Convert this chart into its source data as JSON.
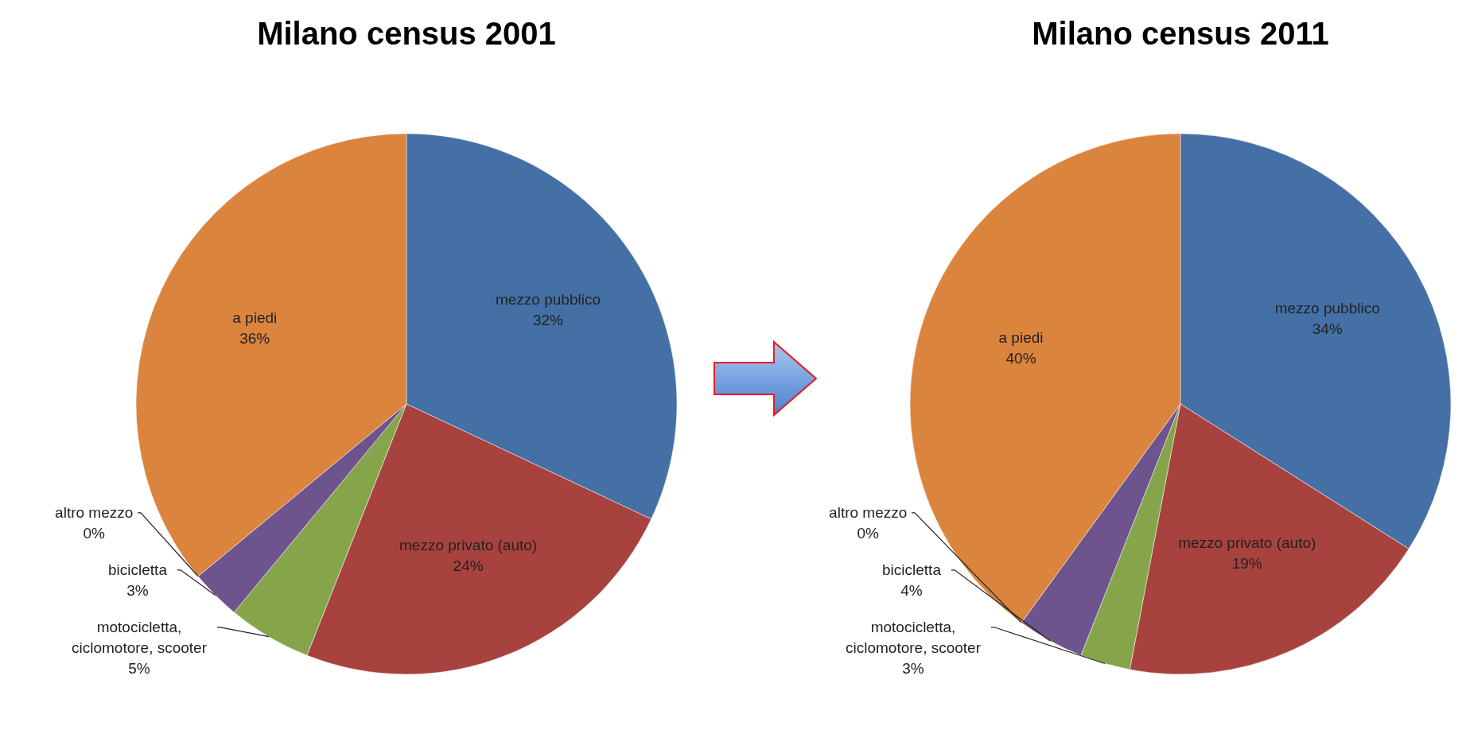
{
  "chart_data": [
    {
      "type": "pie",
      "title": "Milano census 2001",
      "categories": [
        "mezzo pubblico",
        "mezzo privato (auto)",
        "motocicletta, ciclomotore, scooter",
        "bicicletta",
        "altro mezzo",
        "a piedi"
      ],
      "values": [
        32,
        24,
        5,
        3,
        0,
        36
      ],
      "value_labels": [
        "32%",
        "24%",
        "5%",
        "3%",
        "0%",
        "36%"
      ],
      "colors": [
        "#4470a6",
        "#a8423f",
        "#86a44a",
        "#6e548d",
        "#3d96ae",
        "#db843d"
      ]
    },
    {
      "type": "pie",
      "title": "Milano census 2011",
      "categories": [
        "mezzo pubblico",
        "mezzo privato (auto)",
        "motocicletta, ciclomotore, scooter",
        "bicicletta",
        "altro mezzo",
        "a piedi"
      ],
      "values": [
        34,
        19,
        3,
        4,
        0,
        40
      ],
      "value_labels": [
        "34%",
        "19%",
        "3%",
        "4%",
        "0%",
        "40%"
      ],
      "colors": [
        "#4470a6",
        "#a8423f",
        "#86a44a",
        "#6e548d",
        "#3d96ae",
        "#db843d"
      ]
    }
  ]
}
